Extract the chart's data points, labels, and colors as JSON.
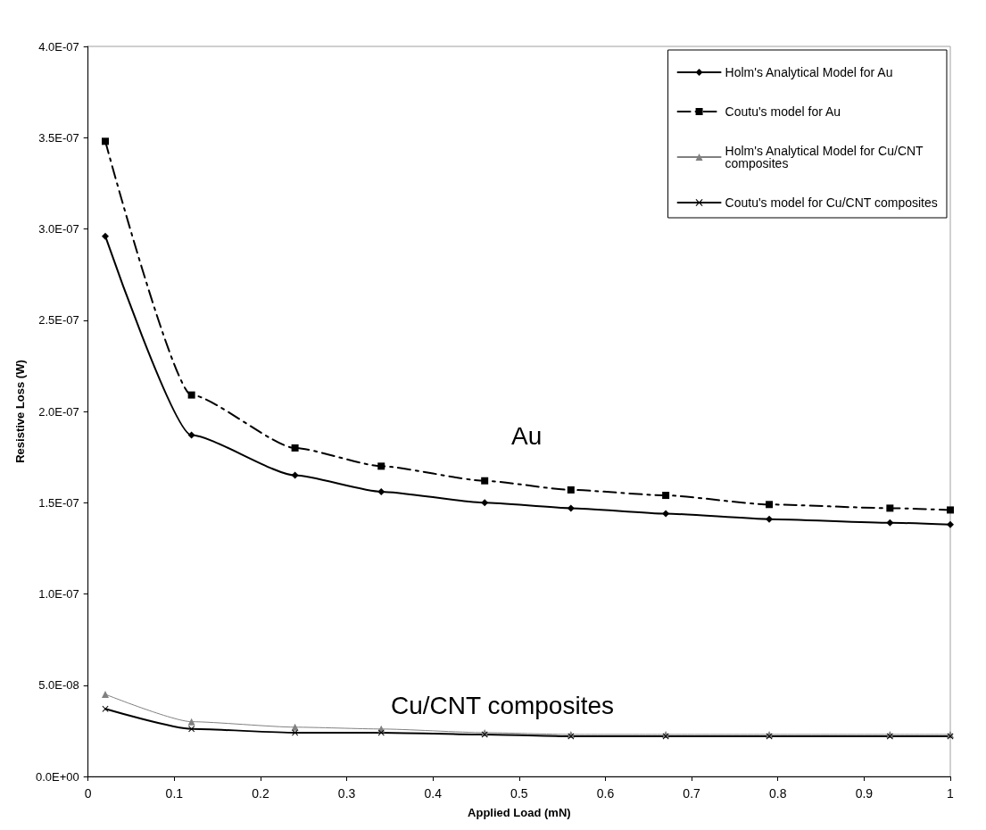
{
  "chart_data": {
    "type": "line",
    "xlabel": "Applied Load (mN)",
    "ylabel": "Resistive Loss (W)",
    "x": [
      0.02,
      0.12,
      0.24,
      0.34,
      0.46,
      0.56,
      0.67,
      0.79,
      0.93,
      1
    ],
    "series": [
      {
        "name": "Holm's Analytical Model for Au",
        "color": "#000000",
        "marker": "diamond",
        "line_style": "solid",
        "values": [
          2.96e-07,
          1.87e-07,
          1.65e-07,
          1.56e-07,
          1.5e-07,
          1.47e-07,
          1.44e-07,
          1.41e-07,
          1.39e-07,
          1.38e-07
        ]
      },
      {
        "name": "Coutu's model for Au",
        "color": "#000000",
        "marker": "square",
        "line_style": "dashed",
        "values": [
          3.48e-07,
          2.09e-07,
          1.8e-07,
          1.7e-07,
          1.62e-07,
          1.57e-07,
          1.54e-07,
          1.49e-07,
          1.47e-07,
          1.46e-07
        ]
      },
      {
        "name": "Holm's Analytical Model for Cu/CNT composites",
        "color": "#808080",
        "marker": "triangle",
        "line_style": "solid",
        "values": [
          4.5e-08,
          3e-08,
          2.7e-08,
          2.6e-08,
          2.4e-08,
          2.3e-08,
          2.3e-08,
          2.3e-08,
          2.3e-08,
          2.3e-08
        ]
      },
      {
        "name": "Coutu's model for Cu/CNT composites",
        "color": "#000000",
        "marker": "cross",
        "line_style": "solid",
        "values": [
          3.7e-08,
          2.6e-08,
          2.4e-08,
          2.4e-08,
          2.3e-08,
          2.2e-08,
          2.2e-08,
          2.2e-08,
          2.2e-08,
          2.2e-08
        ]
      }
    ],
    "xlim": [
      0,
      1
    ],
    "xticks": [
      0,
      0.1,
      0.2,
      0.3,
      0.4,
      0.5,
      0.6,
      0.7,
      0.8,
      0.9,
      1
    ],
    "ylim": [
      0,
      4e-07
    ],
    "yticks": [
      {
        "value": 0,
        "label": "0.0E+00"
      },
      {
        "value": 5e-08,
        "label": "5.0E-08"
      },
      {
        "value": 1e-07,
        "label": "1.0E-07"
      },
      {
        "value": 1.5e-07,
        "label": "1.5E-07"
      },
      {
        "value": 2e-07,
        "label": "2.0E-07"
      },
      {
        "value": 2.5e-07,
        "label": "2.5E-07"
      },
      {
        "value": 3e-07,
        "label": "3.0E-07"
      },
      {
        "value": 3.5e-07,
        "label": "3.5E-07"
      },
      {
        "value": 4e-07,
        "label": "4.0E-07"
      }
    ],
    "annotations": [
      "Au",
      "Cu/CNT composites"
    ],
    "grid": false,
    "legend": "top right"
  }
}
